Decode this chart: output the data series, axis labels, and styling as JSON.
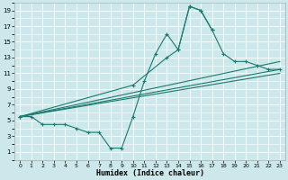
{
  "xlabel": "Humidex (Indice chaleur)",
  "xlim": [
    -0.5,
    23.5
  ],
  "ylim": [
    0,
    20
  ],
  "xticks": [
    0,
    1,
    2,
    3,
    4,
    5,
    6,
    7,
    8,
    9,
    10,
    11,
    12,
    13,
    14,
    15,
    16,
    17,
    18,
    19,
    20,
    21,
    22,
    23
  ],
  "yticks": [
    1,
    3,
    5,
    7,
    9,
    11,
    13,
    15,
    17,
    19
  ],
  "bg_color": "#cce8ea",
  "grid_color": "#ffffff",
  "line_color": "#1a7a6e",
  "curve1_x": [
    0,
    1,
    2,
    3,
    4,
    5,
    6,
    7,
    8,
    9,
    10,
    11,
    12,
    13,
    14,
    15,
    16,
    17
  ],
  "curve1_y": [
    5.5,
    5.5,
    4.5,
    4.5,
    4.5,
    4.0,
    3.5,
    3.5,
    1.5,
    1.5,
    5.5,
    10.0,
    13.5,
    16.0,
    14.0,
    19.5,
    19.0,
    16.5
  ],
  "curve2_x": [
    0,
    10,
    13,
    14,
    15,
    16,
    17,
    18,
    19,
    20,
    21,
    22,
    23
  ],
  "curve2_y": [
    5.5,
    9.5,
    13.0,
    14.0,
    19.5,
    19.0,
    16.5,
    13.5,
    12.5,
    12.5,
    12.0,
    11.5,
    11.5
  ],
  "line1_x": [
    0,
    23
  ],
  "line1_y": [
    5.5,
    12.5
  ],
  "line2_x": [
    0,
    23
  ],
  "line2_y": [
    5.5,
    11.5
  ],
  "line3_x": [
    0,
    23
  ],
  "line3_y": [
    5.5,
    11.0
  ]
}
